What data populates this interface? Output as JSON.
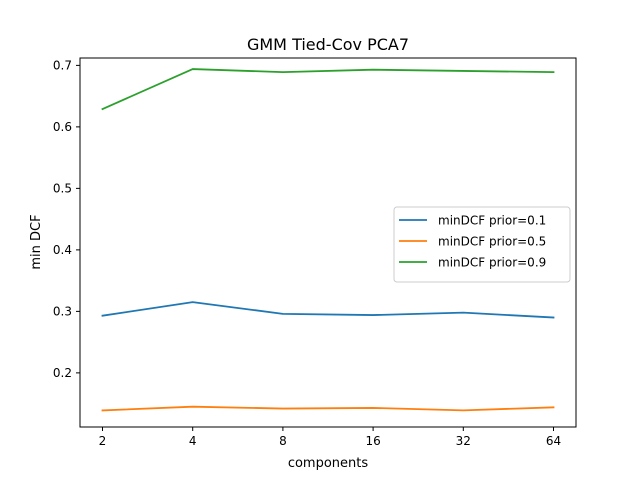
{
  "chart_data": {
    "type": "line",
    "title": "GMM Tied-Cov PCA7",
    "xlabel": "components",
    "ylabel": "min DCF",
    "x": [
      "2",
      "4",
      "8",
      "16",
      "32",
      "64"
    ],
    "x_scale": "log2",
    "ylim": [
      0.112,
      0.712
    ],
    "yticks": [
      "0.2",
      "0.3",
      "0.4",
      "0.5",
      "0.6",
      "0.7"
    ],
    "grid": false,
    "legend_position": "center-right",
    "series": [
      {
        "name": "minDCF prior=0.1",
        "color": "#1f77b4",
        "values": [
          0.293,
          0.315,
          0.296,
          0.294,
          0.298,
          0.29
        ]
      },
      {
        "name": "minDCF prior=0.5",
        "color": "#ff7f0e",
        "values": [
          0.139,
          0.145,
          0.142,
          0.143,
          0.139,
          0.144
        ]
      },
      {
        "name": "minDCF prior=0.9",
        "color": "#2ca02c",
        "values": [
          0.629,
          0.694,
          0.689,
          0.693,
          0.691,
          0.689
        ]
      }
    ]
  }
}
